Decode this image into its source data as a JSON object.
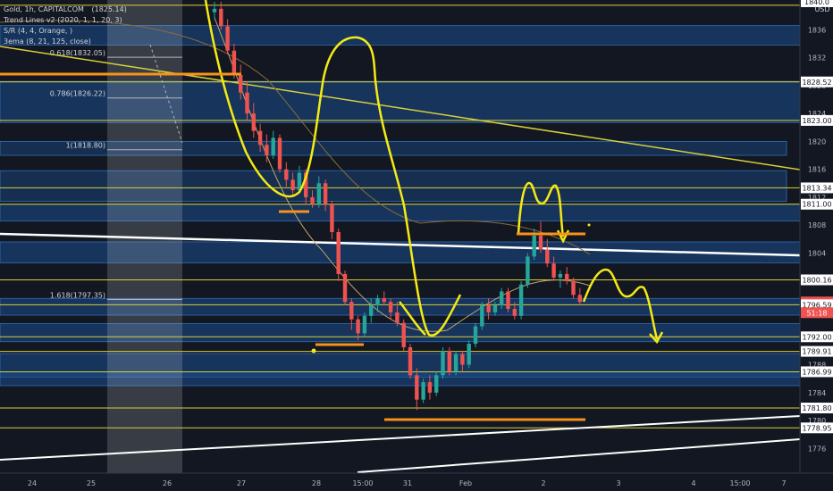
{
  "header": {
    "symbol_line": "Gold, 1h, CAPITALCOM",
    "symbol_value": "(1825.14)",
    "indicator_lines": [
      "Trend Lines v2 (2020, 1, 1, 20, 3)",
      "S/R (4, 4, Orange, )",
      "3ema (8, 21, 125, close)"
    ],
    "currency": "USD"
  },
  "colors": {
    "background": "#131722",
    "zone_fill": "#1b4d8c",
    "zone_border": "#2f6db4",
    "level_line": "#d8cf3a",
    "candle_up": "#26a69a",
    "candle_down": "#ef5350",
    "drawing_yellow": "#f5ea14",
    "drawing_white": "#ffffff",
    "support_orange": "#f7931a",
    "axis_text": "#b2b5be",
    "current_price_bg": "#ef5350"
  },
  "chart_data": {
    "type": "candlestick",
    "y_axis": {
      "range": [
        1774,
        1840
      ],
      "ticks": [
        1840,
        1836,
        1832,
        1828,
        1824,
        1820,
        1816,
        1812,
        1808,
        1804,
        1800,
        1796,
        1792,
        1788,
        1784,
        1780,
        1776
      ]
    },
    "x_axis": {
      "labels": [
        "24",
        "25",
        "26",
        "27",
        "28",
        "15:00",
        "31",
        "Feb",
        "2",
        "3",
        "4",
        "15:00",
        "7"
      ]
    },
    "price_labels": [
      {
        "value": 1840.0,
        "label": "1840.0"
      },
      {
        "value": 1828.52,
        "label": "1828.52"
      },
      {
        "value": 1823.0,
        "label": "1823.00"
      },
      {
        "value": 1813.34,
        "label": "1813.34"
      },
      {
        "value": 1811.0,
        "label": "1811.00"
      },
      {
        "value": 1800.16,
        "label": "1800.16"
      },
      {
        "value": 1796.99,
        "label": "1796.99",
        "current": true
      },
      {
        "value": 1796.59,
        "label": "1796.59"
      },
      {
        "value": 1792.0,
        "label": "1792.00"
      },
      {
        "value": 1789.91,
        "label": "1789.91"
      },
      {
        "value": 1786.99,
        "label": "1786.99"
      },
      {
        "value": 1781.8,
        "label": "1781.80"
      },
      {
        "value": 1778.95,
        "label": "1778.95"
      }
    ],
    "countdown": "51:18",
    "fib_levels": [
      {
        "label": "0.618(1832.05)",
        "value": 1832.05
      },
      {
        "label": "0.786(1826.22)",
        "value": 1826.22
      },
      {
        "label": "1(1818.80)",
        "value": 1818.8
      },
      {
        "label": "1.618(1797.35)",
        "value": 1797.35
      }
    ],
    "horizontal_levels": [
      1839.5,
      1828.52,
      1823.0,
      1813.34,
      1811.0,
      1800.16,
      1796.59,
      1792.0,
      1789.91,
      1786.99,
      1781.8,
      1778.95
    ],
    "zones": [
      [
        1833.8,
        1836.6
      ],
      [
        1822.7,
        1828.6
      ],
      [
        1808.6,
        1811.0
      ],
      [
        1802.6,
        1805.6
      ],
      [
        1795.1,
        1797.5
      ],
      [
        1791.3,
        1793.9
      ],
      [
        1786.2,
        1789.6
      ],
      [
        1785.0,
        1787.0
      ]
    ],
    "candles": [
      {
        "o": 1838.5,
        "h": 1840.0,
        "l": 1837.5,
        "c": 1839.0
      },
      {
        "o": 1839.0,
        "h": 1840.0,
        "l": 1836.0,
        "c": 1836.5
      },
      {
        "o": 1836.5,
        "h": 1837.5,
        "l": 1832.5,
        "c": 1833.0
      },
      {
        "o": 1833.0,
        "h": 1834.0,
        "l": 1829.0,
        "c": 1829.5
      },
      {
        "o": 1829.5,
        "h": 1831.0,
        "l": 1826.0,
        "c": 1827.0
      },
      {
        "o": 1827.0,
        "h": 1828.5,
        "l": 1823.0,
        "c": 1824.0
      },
      {
        "o": 1824.0,
        "h": 1825.5,
        "l": 1820.5,
        "c": 1821.5
      },
      {
        "o": 1821.5,
        "h": 1822.5,
        "l": 1818.5,
        "c": 1819.5
      },
      {
        "o": 1819.5,
        "h": 1821.0,
        "l": 1817.0,
        "c": 1818.0
      },
      {
        "o": 1818.0,
        "h": 1821.5,
        "l": 1817.5,
        "c": 1820.5
      },
      {
        "o": 1820.5,
        "h": 1821.0,
        "l": 1815.5,
        "c": 1816.0
      },
      {
        "o": 1816.0,
        "h": 1817.0,
        "l": 1813.5,
        "c": 1814.5
      },
      {
        "o": 1814.5,
        "h": 1815.5,
        "l": 1812.0,
        "c": 1813.0
      },
      {
        "o": 1813.0,
        "h": 1816.5,
        "l": 1812.5,
        "c": 1815.5
      },
      {
        "o": 1815.5,
        "h": 1816.0,
        "l": 1811.0,
        "c": 1812.0
      },
      {
        "o": 1812.0,
        "h": 1813.0,
        "l": 1810.5,
        "c": 1811.0
      },
      {
        "o": 1811.0,
        "h": 1815.0,
        "l": 1810.5,
        "c": 1814.0
      },
      {
        "o": 1814.0,
        "h": 1814.5,
        "l": 1810.0,
        "c": 1811.0
      },
      {
        "o": 1811.0,
        "h": 1811.5,
        "l": 1806.0,
        "c": 1807.0
      },
      {
        "o": 1807.0,
        "h": 1807.5,
        "l": 1800.0,
        "c": 1801.0
      },
      {
        "o": 1801.0,
        "h": 1801.5,
        "l": 1796.5,
        "c": 1797.0
      },
      {
        "o": 1797.0,
        "h": 1797.5,
        "l": 1793.0,
        "c": 1794.5
      },
      {
        "o": 1794.5,
        "h": 1795.0,
        "l": 1791.5,
        "c": 1792.5
      },
      {
        "o": 1792.5,
        "h": 1795.5,
        "l": 1792.0,
        "c": 1795.0
      },
      {
        "o": 1795.0,
        "h": 1797.5,
        "l": 1794.0,
        "c": 1796.5
      },
      {
        "o": 1796.5,
        "h": 1798.0,
        "l": 1795.5,
        "c": 1797.5
      },
      {
        "o": 1797.5,
        "h": 1798.5,
        "l": 1796.5,
        "c": 1797.0
      },
      {
        "o": 1797.0,
        "h": 1797.5,
        "l": 1794.5,
        "c": 1795.5
      },
      {
        "o": 1795.5,
        "h": 1797.0,
        "l": 1793.5,
        "c": 1794.0
      },
      {
        "o": 1794.0,
        "h": 1794.5,
        "l": 1790.0,
        "c": 1790.5
      },
      {
        "o": 1790.5,
        "h": 1791.0,
        "l": 1786.0,
        "c": 1786.5
      },
      {
        "o": 1786.5,
        "h": 1787.5,
        "l": 1781.5,
        "c": 1783.0
      },
      {
        "o": 1783.0,
        "h": 1786.0,
        "l": 1782.5,
        "c": 1785.5
      },
      {
        "o": 1785.5,
        "h": 1786.5,
        "l": 1783.0,
        "c": 1784.0
      },
      {
        "o": 1784.0,
        "h": 1787.0,
        "l": 1783.5,
        "c": 1786.5
      },
      {
        "o": 1786.5,
        "h": 1790.5,
        "l": 1786.0,
        "c": 1790.0
      },
      {
        "o": 1790.0,
        "h": 1790.5,
        "l": 1786.5,
        "c": 1787.0
      },
      {
        "o": 1787.0,
        "h": 1790.0,
        "l": 1786.5,
        "c": 1789.5
      },
      {
        "o": 1789.5,
        "h": 1790.0,
        "l": 1787.0,
        "c": 1788.0
      },
      {
        "o": 1788.0,
        "h": 1791.5,
        "l": 1787.5,
        "c": 1791.0
      },
      {
        "o": 1791.0,
        "h": 1794.0,
        "l": 1790.5,
        "c": 1793.5
      },
      {
        "o": 1793.5,
        "h": 1797.0,
        "l": 1793.0,
        "c": 1796.5
      },
      {
        "o": 1796.5,
        "h": 1797.5,
        "l": 1794.5,
        "c": 1795.5
      },
      {
        "o": 1795.5,
        "h": 1797.0,
        "l": 1795.0,
        "c": 1796.5
      },
      {
        "o": 1796.5,
        "h": 1799.0,
        "l": 1796.0,
        "c": 1798.5
      },
      {
        "o": 1798.5,
        "h": 1799.0,
        "l": 1795.5,
        "c": 1796.0
      },
      {
        "o": 1796.0,
        "h": 1797.0,
        "l": 1794.5,
        "c": 1795.0
      },
      {
        "o": 1795.0,
        "h": 1800.0,
        "l": 1794.5,
        "c": 1799.5
      },
      {
        "o": 1799.5,
        "h": 1804.0,
        "l": 1799.0,
        "c": 1803.5
      },
      {
        "o": 1803.5,
        "h": 1807.5,
        "l": 1803.0,
        "c": 1806.5
      },
      {
        "o": 1806.5,
        "h": 1808.5,
        "l": 1804.0,
        "c": 1804.5
      },
      {
        "o": 1804.5,
        "h": 1806.0,
        "l": 1802.0,
        "c": 1802.5
      },
      {
        "o": 1802.5,
        "h": 1803.5,
        "l": 1800.0,
        "c": 1800.5
      },
      {
        "o": 1800.5,
        "h": 1801.5,
        "l": 1799.0,
        "c": 1801.0
      },
      {
        "o": 1801.0,
        "h": 1802.0,
        "l": 1799.5,
        "c": 1800.0
      },
      {
        "o": 1800.0,
        "h": 1800.5,
        "l": 1797.5,
        "c": 1798.0
      },
      {
        "o": 1798.0,
        "h": 1799.0,
        "l": 1796.5,
        "c": 1796.99
      }
    ]
  }
}
